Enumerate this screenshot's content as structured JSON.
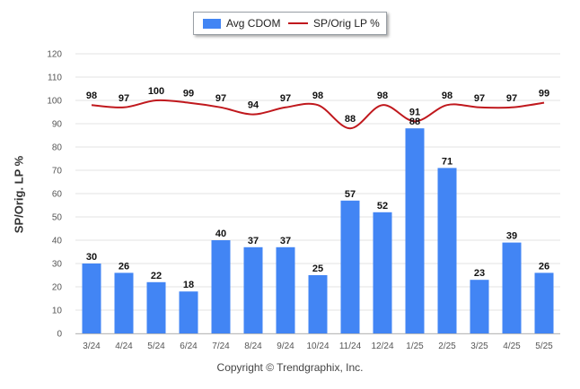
{
  "chart_data": {
    "type": "bar",
    "categories": [
      "3/24",
      "4/24",
      "5/24",
      "6/24",
      "7/24",
      "8/24",
      "9/24",
      "10/24",
      "11/24",
      "12/24",
      "1/25",
      "2/25",
      "3/25",
      "4/25",
      "5/25"
    ],
    "series": [
      {
        "name": "Avg CDOM",
        "type": "bar",
        "color": "#4285f4",
        "values": [
          30,
          26,
          22,
          18,
          40,
          37,
          37,
          25,
          57,
          52,
          88,
          71,
          23,
          39,
          26
        ]
      },
      {
        "name": "SP/Orig LP %",
        "type": "line",
        "color": "#c0181d",
        "values": [
          98,
          97,
          100,
          99,
          97,
          94,
          97,
          98,
          88,
          98,
          91,
          98,
          97,
          97,
          99
        ]
      }
    ],
    "ylabel": "SP/Orig. LP %",
    "ylim": [
      0,
      120
    ],
    "yticks": [
      0,
      10,
      20,
      30,
      40,
      50,
      60,
      70,
      80,
      90,
      100,
      110,
      120
    ],
    "grid": true,
    "legend": "top-center"
  },
  "legend": {
    "bar_label": "Avg CDOM",
    "line_label": "SP/Orig LP %"
  },
  "copyright": "Copyright © Trendgraphix, Inc."
}
